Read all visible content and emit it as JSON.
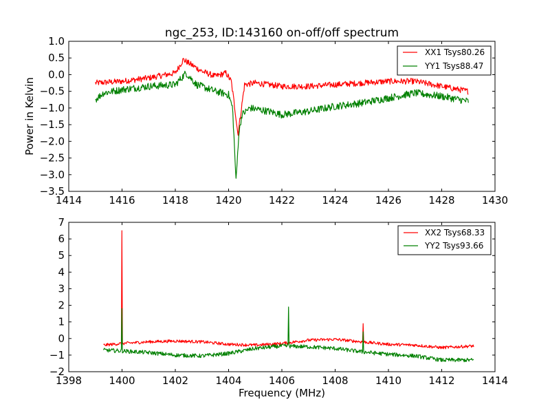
{
  "chart_data": [
    {
      "type": "line",
      "title": "ngc_253, ID:143160 on-off/off spectrum",
      "xlabel": "",
      "ylabel": "Power in Kelvin",
      "xlim": [
        1414,
        1430
      ],
      "ylim": [
        -3.5,
        1.0
      ],
      "xticks": [
        1414,
        1416,
        1418,
        1420,
        1422,
        1424,
        1426,
        1428,
        1430
      ],
      "xtick_labels": [
        "1414",
        "1416",
        "1418",
        "1420",
        "1422",
        "1424",
        "1426",
        "1428",
        "1430"
      ],
      "yticks": [
        -3.5,
        -3.0,
        -2.5,
        -2.0,
        -1.5,
        -1.0,
        -0.5,
        0.0,
        0.5,
        1.0
      ],
      "ytick_labels": [
        "−3.5",
        "−3.0",
        "−2.5",
        "−2.0",
        "−1.5",
        "−1.0",
        "−0.5",
        "0.0",
        "0.5",
        "1.0"
      ],
      "grid": false,
      "legend_position": "top-right",
      "x_range_data": [
        1415.0,
        1429.0
      ],
      "series": [
        {
          "name": "XX1 Tsys80.26",
          "color": "#ff0000",
          "noise": 0.09,
          "points": [
            [
              1415.0,
              -0.25
            ],
            [
              1416.0,
              -0.2
            ],
            [
              1417.0,
              -0.1
            ],
            [
              1418.0,
              0.05
            ],
            [
              1418.3,
              0.45
            ],
            [
              1418.6,
              0.3
            ],
            [
              1419.0,
              0.1
            ],
            [
              1419.5,
              -0.05
            ],
            [
              1419.9,
              0.05
            ],
            [
              1420.1,
              -0.2
            ],
            [
              1420.25,
              -1.1
            ],
            [
              1420.35,
              -1.8
            ],
            [
              1420.45,
              -1.2
            ],
            [
              1420.6,
              -0.3
            ],
            [
              1421.0,
              -0.25
            ],
            [
              1422.0,
              -0.35
            ],
            [
              1423.0,
              -0.35
            ],
            [
              1424.0,
              -0.3
            ],
            [
              1425.0,
              -0.25
            ],
            [
              1426.0,
              -0.2
            ],
            [
              1427.0,
              -0.2
            ],
            [
              1428.0,
              -0.35
            ],
            [
              1429.0,
              -0.5
            ]
          ]
        },
        {
          "name": "YY1 Tsys88.47",
          "color": "#008000",
          "noise": 0.11,
          "points": [
            [
              1415.0,
              -0.75
            ],
            [
              1415.3,
              -0.55
            ],
            [
              1416.0,
              -0.45
            ],
            [
              1417.0,
              -0.35
            ],
            [
              1418.0,
              -0.3
            ],
            [
              1418.4,
              0.05
            ],
            [
              1418.8,
              -0.3
            ],
            [
              1419.5,
              -0.5
            ],
            [
              1420.0,
              -0.6
            ],
            [
              1420.15,
              -1.0
            ],
            [
              1420.28,
              -3.2
            ],
            [
              1420.38,
              -1.8
            ],
            [
              1420.5,
              -1.2
            ],
            [
              1420.8,
              -1.0
            ],
            [
              1421.5,
              -1.1
            ],
            [
              1422.0,
              -1.2
            ],
            [
              1423.0,
              -1.1
            ],
            [
              1424.0,
              -0.95
            ],
            [
              1425.0,
              -0.85
            ],
            [
              1426.0,
              -0.7
            ],
            [
              1427.0,
              -0.55
            ],
            [
              1428.0,
              -0.65
            ],
            [
              1429.0,
              -0.8
            ]
          ]
        }
      ]
    },
    {
      "type": "line",
      "title": "",
      "xlabel": "Frequency (MHz)",
      "ylabel": "",
      "xlim": [
        1398,
        1414
      ],
      "ylim": [
        -2,
        7
      ],
      "xticks": [
        1398,
        1400,
        1402,
        1404,
        1406,
        1408,
        1410,
        1412,
        1414
      ],
      "xtick_labels": [
        "1398",
        "1400",
        "1402",
        "1404",
        "1406",
        "1408",
        "1410",
        "1412",
        "1414"
      ],
      "yticks": [
        -2,
        -1,
        0,
        1,
        2,
        3,
        4,
        5,
        6,
        7
      ],
      "ytick_labels": [
        "−2",
        "−1",
        "0",
        "1",
        "2",
        "3",
        "4",
        "5",
        "6",
        "7"
      ],
      "grid": false,
      "legend_position": "top-right",
      "x_range_data": [
        1399.3,
        1413.2
      ],
      "series": [
        {
          "name": "XX2 Tsys68.33",
          "color": "#ff0000",
          "noise": 0.09,
          "points": [
            [
              1399.3,
              -0.4
            ],
            [
              1400.0,
              -0.3
            ],
            [
              1401.0,
              -0.2
            ],
            [
              1402.0,
              -0.15
            ],
            [
              1403.0,
              -0.2
            ],
            [
              1404.0,
              -0.35
            ],
            [
              1405.0,
              -0.4
            ],
            [
              1406.0,
              -0.3
            ],
            [
              1407.0,
              -0.1
            ],
            [
              1408.0,
              -0.05
            ],
            [
              1409.0,
              -0.2
            ],
            [
              1410.0,
              -0.35
            ],
            [
              1411.0,
              -0.4
            ],
            [
              1412.0,
              -0.55
            ],
            [
              1413.2,
              -0.45
            ]
          ],
          "spikes": [
            [
              1400.0,
              6.5
            ],
            [
              1409.05,
              0.9
            ]
          ]
        },
        {
          "name": "YY2 Tsys93.66",
          "color": "#008000",
          "noise": 0.12,
          "points": [
            [
              1399.3,
              -0.7
            ],
            [
              1400.0,
              -0.75
            ],
            [
              1401.0,
              -0.85
            ],
            [
              1402.0,
              -1.0
            ],
            [
              1403.0,
              -1.05
            ],
            [
              1404.0,
              -0.9
            ],
            [
              1405.0,
              -0.6
            ],
            [
              1406.0,
              -0.45
            ],
            [
              1407.0,
              -0.5
            ],
            [
              1408.0,
              -0.6
            ],
            [
              1409.0,
              -0.8
            ],
            [
              1410.0,
              -0.95
            ],
            [
              1411.0,
              -1.05
            ],
            [
              1412.0,
              -1.3
            ],
            [
              1413.2,
              -1.3
            ]
          ],
          "spikes": [
            [
              1400.0,
              1.8
            ],
            [
              1406.25,
              1.9
            ],
            [
              1409.05,
              0.4
            ]
          ]
        }
      ]
    }
  ]
}
